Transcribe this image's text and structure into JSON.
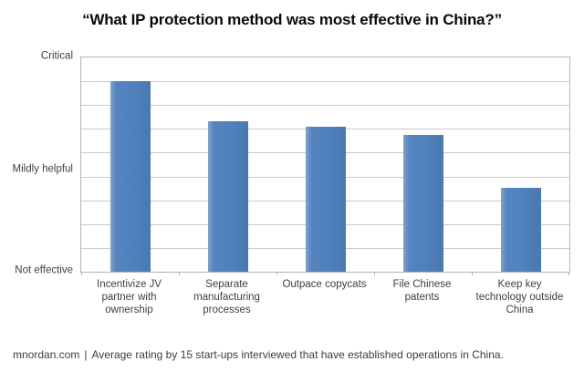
{
  "title": "“What IP protection method was most effective in China?”",
  "footer": {
    "source": "mnordan.com",
    "separator": "|",
    "note": "Average rating by 15 start-ups interviewed that have established operations in China."
  },
  "chart_data": {
    "type": "bar",
    "title": "“What IP protection method was most effective in China?”",
    "categories": [
      "Incentivize JV partner with ownership",
      "Separate manufacturing processes",
      "Outpace copycats",
      "File Chinese patents",
      "Keep key technology outside China"
    ],
    "values": [
      2.78,
      2.4,
      2.35,
      2.28,
      1.78
    ],
    "series_name": "Average rating",
    "xlabel": "",
    "ylabel": "",
    "ylim": [
      1,
      3
    ],
    "ytick_labels": [
      {
        "value": 3,
        "label": "Critical"
      },
      {
        "value": 2,
        "label": "Mildly helpful"
      },
      {
        "value": 1,
        "label": "Not effective"
      }
    ],
    "grid": "horizontal",
    "grid_interval_count": 9,
    "legend": "none",
    "bar_color": "#4f81bd",
    "gridline_color": "#c9c9c9",
    "plot_border_color": "#b3b3b3"
  }
}
